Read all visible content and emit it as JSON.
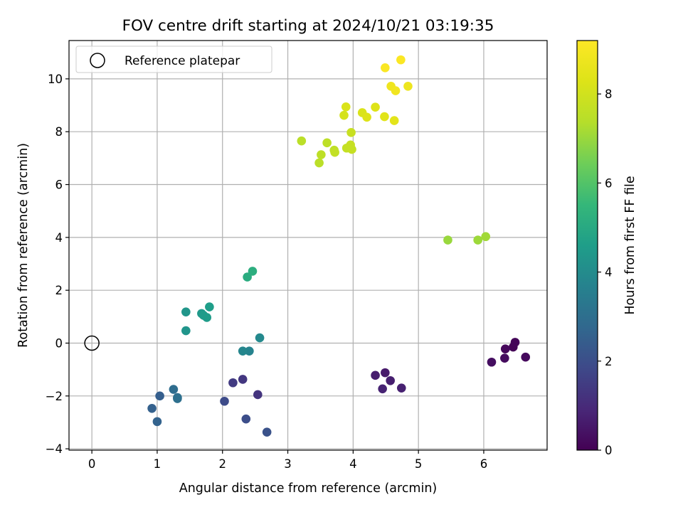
{
  "chart_data": {
    "type": "scatter",
    "title": "FOV centre drift starting at 2024/10/21 03:19:35",
    "xlabel": "Angular distance from reference (arcmin)",
    "ylabel": "Rotation from reference (arcmin)",
    "xlim": [
      -0.35,
      6.97
    ],
    "ylim": [
      -4.05,
      11.45
    ],
    "x_ticks": [
      0,
      1,
      2,
      3,
      4,
      5,
      6
    ],
    "y_ticks": [
      -4,
      -2,
      0,
      2,
      4,
      6,
      8,
      10
    ],
    "grid": true,
    "legend": {
      "placement": "top-left",
      "entries": [
        {
          "label": "Reference platepar",
          "marker": "open-circle",
          "x": 0,
          "y": 0
        }
      ]
    },
    "colorbar": {
      "label": "Hours from first FF file",
      "colormap": "viridis",
      "range": [
        0,
        9.2
      ],
      "ticks": [
        0,
        2,
        4,
        6,
        8
      ]
    },
    "points": [
      {
        "x": 6.45,
        "y": -0.15,
        "c": 0.05
      },
      {
        "x": 6.48,
        "y": 0.03,
        "c": 0.1
      },
      {
        "x": 6.33,
        "y": -0.22,
        "c": 0.15
      },
      {
        "x": 6.64,
        "y": -0.53,
        "c": 0.2
      },
      {
        "x": 6.32,
        "y": -0.57,
        "c": 0.25
      },
      {
        "x": 6.12,
        "y": -0.72,
        "c": 0.3
      },
      {
        "x": 4.49,
        "y": -1.12,
        "c": 0.6
      },
      {
        "x": 4.34,
        "y": -1.22,
        "c": 0.65
      },
      {
        "x": 4.57,
        "y": -1.42,
        "c": 0.7
      },
      {
        "x": 4.74,
        "y": -1.7,
        "c": 0.75
      },
      {
        "x": 4.45,
        "y": -1.73,
        "c": 0.8
      },
      {
        "x": 2.54,
        "y": -1.95,
        "c": 1.25
      },
      {
        "x": 2.31,
        "y": -1.37,
        "c": 1.35
      },
      {
        "x": 2.16,
        "y": -1.5,
        "c": 1.45
      },
      {
        "x": 2.03,
        "y": -2.2,
        "c": 1.9
      },
      {
        "x": 2.36,
        "y": -2.87,
        "c": 2.0
      },
      {
        "x": 2.68,
        "y": -3.37,
        "c": 2.1
      },
      {
        "x": 1.04,
        "y": -2.0,
        "c": 2.5
      },
      {
        "x": 0.92,
        "y": -2.47,
        "c": 2.55
      },
      {
        "x": 1.0,
        "y": -2.97,
        "c": 2.6
      },
      {
        "x": 1.25,
        "y": -1.75,
        "c": 2.95
      },
      {
        "x": 1.31,
        "y": -2.06,
        "c": 3.0
      },
      {
        "x": 1.31,
        "y": -2.1,
        "c": 3.05
      },
      {
        "x": 2.41,
        "y": -0.3,
        "c": 3.7
      },
      {
        "x": 2.31,
        "y": -0.3,
        "c": 3.8
      },
      {
        "x": 2.57,
        "y": 0.2,
        "c": 3.9
      },
      {
        "x": 1.44,
        "y": 0.47,
        "c": 4.3
      },
      {
        "x": 1.44,
        "y": 1.18,
        "c": 4.35
      },
      {
        "x": 1.68,
        "y": 1.12,
        "c": 4.45
      },
      {
        "x": 1.71,
        "y": 1.05,
        "c": 4.5
      },
      {
        "x": 1.76,
        "y": 0.97,
        "c": 4.55
      },
      {
        "x": 1.8,
        "y": 1.37,
        "c": 4.6
      },
      {
        "x": 2.38,
        "y": 2.5,
        "c": 5.1
      },
      {
        "x": 2.46,
        "y": 2.72,
        "c": 5.2
      },
      {
        "x": 5.45,
        "y": 3.9,
        "c": 7.0
      },
      {
        "x": 5.91,
        "y": 3.9,
        "c": 7.05
      },
      {
        "x": 6.03,
        "y": 4.03,
        "c": 7.1
      },
      {
        "x": 3.21,
        "y": 7.65,
        "c": 7.5
      },
      {
        "x": 3.48,
        "y": 6.82,
        "c": 7.5
      },
      {
        "x": 3.51,
        "y": 7.13,
        "c": 7.55
      },
      {
        "x": 3.6,
        "y": 7.58,
        "c": 7.55
      },
      {
        "x": 3.71,
        "y": 7.3,
        "c": 7.6
      },
      {
        "x": 3.72,
        "y": 7.22,
        "c": 7.65
      },
      {
        "x": 3.9,
        "y": 7.38,
        "c": 7.7
      },
      {
        "x": 3.96,
        "y": 7.5,
        "c": 7.75
      },
      {
        "x": 3.98,
        "y": 7.33,
        "c": 7.75
      },
      {
        "x": 3.97,
        "y": 7.97,
        "c": 7.8
      },
      {
        "x": 3.86,
        "y": 8.62,
        "c": 8.1
      },
      {
        "x": 3.89,
        "y": 8.94,
        "c": 8.2
      },
      {
        "x": 4.14,
        "y": 8.72,
        "c": 8.2
      },
      {
        "x": 4.21,
        "y": 8.55,
        "c": 8.3
      },
      {
        "x": 4.34,
        "y": 8.93,
        "c": 8.3
      },
      {
        "x": 4.48,
        "y": 8.57,
        "c": 8.4
      },
      {
        "x": 4.63,
        "y": 8.42,
        "c": 8.45
      },
      {
        "x": 4.84,
        "y": 9.72,
        "c": 8.75
      },
      {
        "x": 4.58,
        "y": 9.72,
        "c": 8.8
      },
      {
        "x": 4.65,
        "y": 9.55,
        "c": 8.85
      },
      {
        "x": 4.49,
        "y": 10.42,
        "c": 9.1
      },
      {
        "x": 4.73,
        "y": 10.72,
        "c": 9.15
      }
    ]
  }
}
